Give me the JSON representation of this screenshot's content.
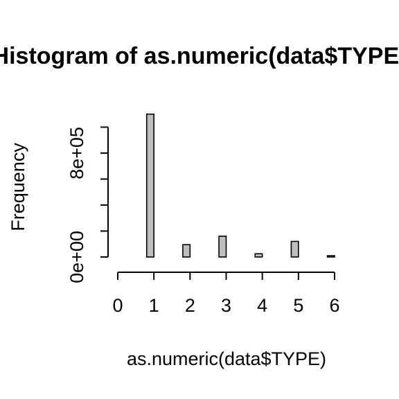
{
  "chart_data": {
    "type": "bar",
    "title": "Histogram of as.numeric(data$TYPE)",
    "xlabel": "as.numeric(data$TYPE)",
    "ylabel": "Frequency",
    "bar_color": "#bebebe",
    "xlim": [
      0,
      6
    ],
    "ylim": [
      0,
      1000000
    ],
    "x_ticks": [
      0,
      1,
      2,
      3,
      4,
      5,
      6
    ],
    "x_tick_labels": [
      "0",
      "1",
      "2",
      "3",
      "4",
      "5",
      "6"
    ],
    "y_ticks": [
      0,
      200000,
      400000,
      600000,
      800000,
      1000000
    ],
    "y_tick_labels": [
      "0e+00",
      "",
      "",
      "",
      "8e+05",
      ""
    ],
    "bins": [
      {
        "x0": 0.0,
        "x1": 0.2,
        "value": 0
      },
      {
        "x0": 0.2,
        "x1": 0.4,
        "value": 0
      },
      {
        "x0": 0.4,
        "x1": 0.6,
        "value": 0
      },
      {
        "x0": 0.6,
        "x1": 0.8,
        "value": 0
      },
      {
        "x0": 0.8,
        "x1": 1.0,
        "value": 1100000
      },
      {
        "x0": 1.0,
        "x1": 1.2,
        "value": 0
      },
      {
        "x0": 1.2,
        "x1": 1.4,
        "value": 0
      },
      {
        "x0": 1.4,
        "x1": 1.6,
        "value": 0
      },
      {
        "x0": 1.6,
        "x1": 1.8,
        "value": 0
      },
      {
        "x0": 1.8,
        "x1": 2.0,
        "value": 95000
      },
      {
        "x0": 2.0,
        "x1": 2.2,
        "value": 0
      },
      {
        "x0": 2.2,
        "x1": 2.4,
        "value": 0
      },
      {
        "x0": 2.4,
        "x1": 2.6,
        "value": 0
      },
      {
        "x0": 2.6,
        "x1": 2.8,
        "value": 0
      },
      {
        "x0": 2.8,
        "x1": 3.0,
        "value": 160000
      },
      {
        "x0": 3.0,
        "x1": 3.2,
        "value": 0
      },
      {
        "x0": 3.2,
        "x1": 3.4,
        "value": 0
      },
      {
        "x0": 3.4,
        "x1": 3.6,
        "value": 0
      },
      {
        "x0": 3.6,
        "x1": 3.8,
        "value": 0
      },
      {
        "x0": 3.8,
        "x1": 4.0,
        "value": 25000
      },
      {
        "x0": 4.0,
        "x1": 4.2,
        "value": 0
      },
      {
        "x0": 4.2,
        "x1": 4.4,
        "value": 0
      },
      {
        "x0": 4.4,
        "x1": 4.6,
        "value": 0
      },
      {
        "x0": 4.6,
        "x1": 4.8,
        "value": 0
      },
      {
        "x0": 4.8,
        "x1": 5.0,
        "value": 120000
      },
      {
        "x0": 5.0,
        "x1": 5.2,
        "value": 0
      },
      {
        "x0": 5.2,
        "x1": 5.4,
        "value": 0
      },
      {
        "x0": 5.4,
        "x1": 5.6,
        "value": 0
      },
      {
        "x0": 5.6,
        "x1": 5.8,
        "value": 0
      },
      {
        "x0": 5.8,
        "x1": 6.0,
        "value": 10000
      }
    ]
  }
}
